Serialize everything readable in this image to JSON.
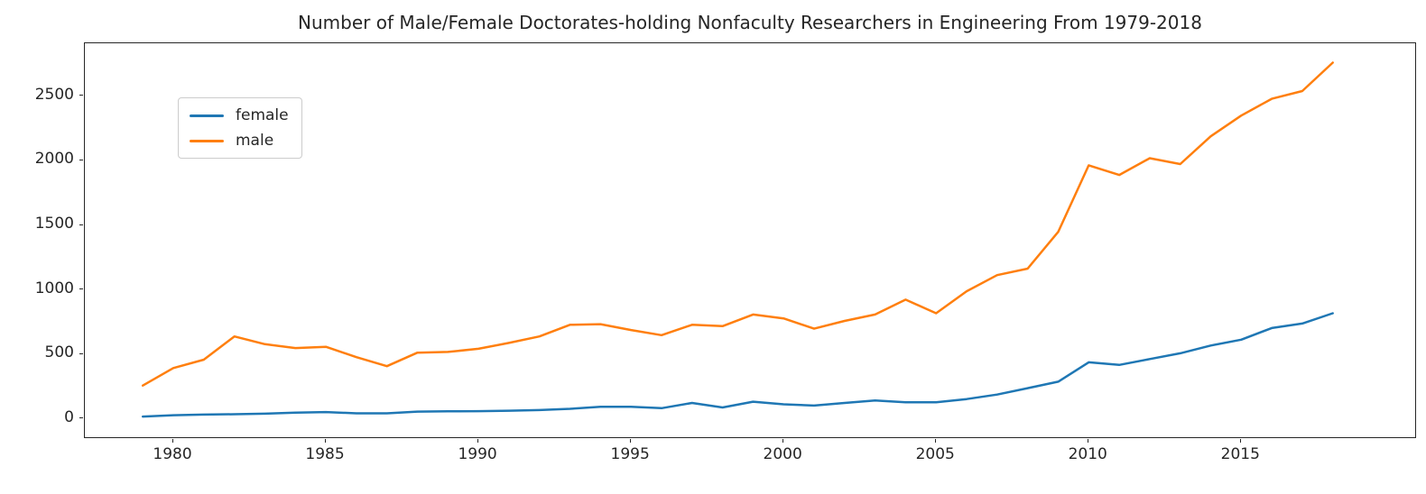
{
  "title": "Number of Male/Female Doctorates-holding Nonfaculty Researchers in Engineering From 1979-2018",
  "colors": {
    "female_line": "#1f77b4",
    "male_line": "#ff7f0e",
    "axis_text": "#262626",
    "spine": "#262626",
    "legend_border": "#cccccc",
    "background": "#ffffff"
  },
  "legend": {
    "position": "upper left",
    "items": [
      {
        "label": "female"
      },
      {
        "label": "male"
      }
    ]
  },
  "chart_data": {
    "type": "line",
    "title": "Number of Male/Female Doctorates-holding Nonfaculty Researchers in Engineering From 1979-2018",
    "xlabel": "",
    "ylabel": "",
    "grid": false,
    "legend_position": "upper left",
    "x": [
      1979,
      1980,
      1981,
      1982,
      1983,
      1984,
      1985,
      1986,
      1987,
      1988,
      1989,
      1990,
      1991,
      1992,
      1993,
      1994,
      1995,
      1996,
      1997,
      1998,
      1999,
      2000,
      2001,
      2002,
      2003,
      2004,
      2005,
      2006,
      2007,
      2008,
      2009,
      2010,
      2011,
      2012,
      2013,
      2014,
      2015,
      2016,
      2017,
      2018
    ],
    "series": [
      {
        "name": "female",
        "color": "#1f77b4",
        "values": [
          20,
          30,
          35,
          38,
          42,
          50,
          55,
          45,
          45,
          58,
          60,
          62,
          65,
          70,
          80,
          95,
          95,
          85,
          125,
          90,
          135,
          115,
          105,
          125,
          145,
          130,
          130,
          155,
          190,
          240,
          290,
          440,
          420,
          465,
          510,
          570,
          615,
          705,
          740,
          820
        ]
      },
      {
        "name": "male",
        "color": "#ff7f0e",
        "values": [
          260,
          395,
          460,
          640,
          580,
          550,
          560,
          480,
          410,
          515,
          520,
          545,
          590,
          640,
          730,
          735,
          690,
          650,
          730,
          720,
          810,
          780,
          700,
          760,
          810,
          925,
          820,
          990,
          1115,
          1165,
          1450,
          1965,
          1890,
          2020,
          1975,
          2190,
          2350,
          2480,
          2540,
          2760
        ]
      }
    ],
    "xticks": [
      1980,
      1985,
      1990,
      1995,
      2000,
      2005,
      2010,
      2015
    ],
    "yticks": [
      0,
      500,
      1000,
      1500,
      2000,
      2500
    ],
    "xlim": [
      1977.1,
      2020.7
    ],
    "ylim": [
      -140,
      2910
    ]
  }
}
